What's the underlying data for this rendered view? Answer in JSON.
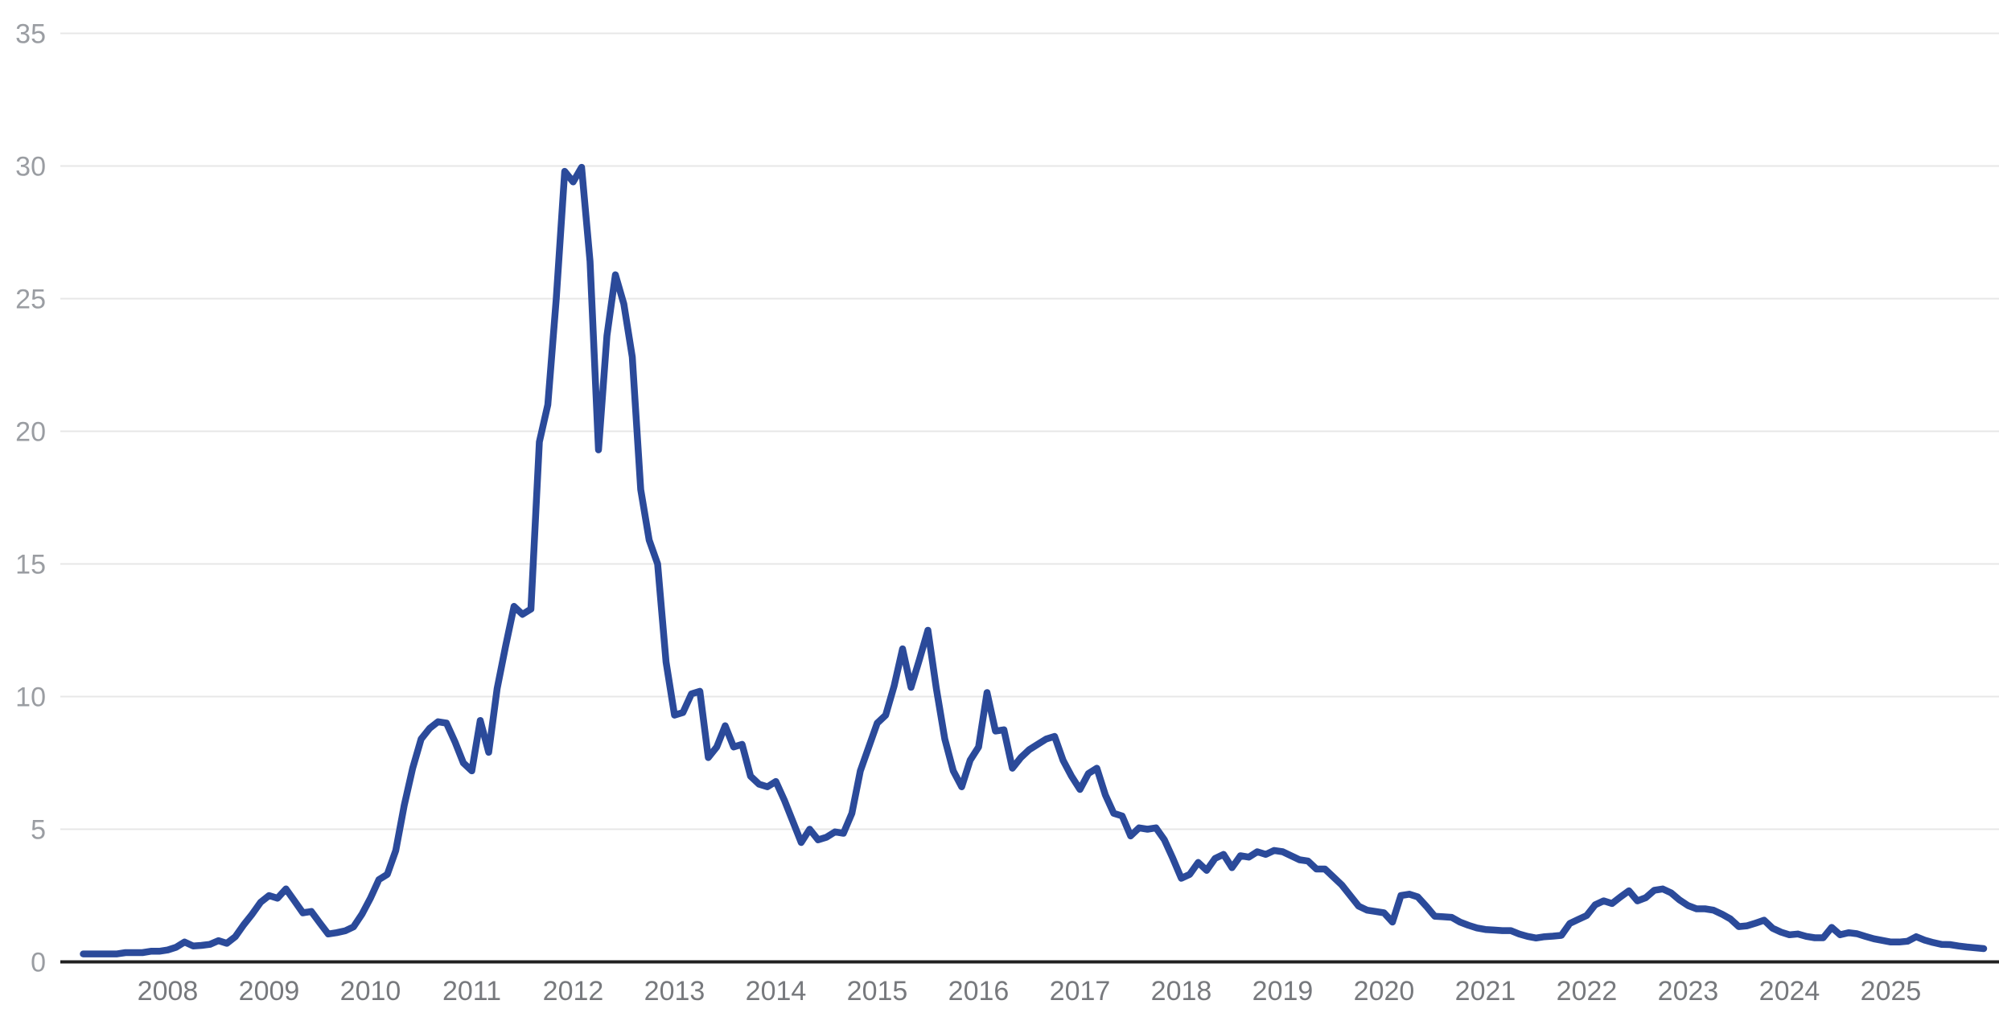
{
  "chart_data": {
    "type": "line",
    "title": "",
    "subtitle": "",
    "xlabel": "",
    "ylabel": "",
    "legend": "none",
    "grid": "horizontal",
    "background_color": "#ffffff",
    "line_color": "#2b4a9a",
    "gridline_color": "#e7e7e7",
    "baseline_color": "#212121",
    "y_label_color": "#9a9da2",
    "x_label_color": "#77797d",
    "ylim": [
      0,
      35
    ],
    "y_ticks": [
      0,
      5,
      10,
      15,
      20,
      25,
      30,
      35
    ],
    "x_tick_labels": [
      "2008",
      "2009",
      "2010",
      "2011",
      "2012",
      "2013",
      "2014",
      "2015",
      "2016",
      "2017",
      "2018",
      "2019",
      "2020",
      "2021",
      "2022",
      "2023",
      "2024",
      "2025"
    ],
    "frequency": "monthly",
    "start_month": "2007-03",
    "end_month": "2025-12",
    "values": [
      0.3,
      0.3,
      0.3,
      0.3,
      0.3,
      0.35,
      0.35,
      0.35,
      0.4,
      0.4,
      0.45,
      0.55,
      0.75,
      0.6,
      0.62,
      0.66,
      0.8,
      0.7,
      0.95,
      1.4,
      1.8,
      2.25,
      2.5,
      2.4,
      2.75,
      2.3,
      1.85,
      1.9,
      1.47,
      1.05,
      1.1,
      1.17,
      1.32,
      1.8,
      2.4,
      3.1,
      3.3,
      4.2,
      5.9,
      7.3,
      8.4,
      8.8,
      9.05,
      9.0,
      8.3,
      7.5,
      7.2,
      9.1,
      7.9,
      10.3,
      11.9,
      13.4,
      13.1,
      13.3,
      19.6,
      21.0,
      25.0,
      29.8,
      29.4,
      29.95,
      26.4,
      19.3,
      23.6,
      25.9,
      24.8,
      22.8,
      17.8,
      15.9,
      15.0,
      11.3,
      9.3,
      9.4,
      10.1,
      10.2,
      7.7,
      8.1,
      8.9,
      8.1,
      8.2,
      7.0,
      6.7,
      6.6,
      6.8,
      6.1,
      5.3,
      4.5,
      5.0,
      4.6,
      4.7,
      4.9,
      4.85,
      5.6,
      7.2,
      8.1,
      9.0,
      9.3,
      10.4,
      11.8,
      10.35,
      11.4,
      12.5,
      10.3,
      8.4,
      7.2,
      6.6,
      7.6,
      8.1,
      10.15,
      8.7,
      8.75,
      7.3,
      7.7,
      8.0,
      8.2,
      8.4,
      8.5,
      7.6,
      7.0,
      6.5,
      7.1,
      7.3,
      6.3,
      5.6,
      5.5,
      4.75,
      5.05,
      5.0,
      5.05,
      4.6,
      3.9,
      3.15,
      3.3,
      3.75,
      3.45,
      3.9,
      4.05,
      3.55,
      4.0,
      3.95,
      4.15,
      4.05,
      4.2,
      4.15,
      4.0,
      3.85,
      3.8,
      3.5,
      3.5,
      3.2,
      2.9,
      2.5,
      2.1,
      1.95,
      1.9,
      1.85,
      1.5,
      2.5,
      2.55,
      2.45,
      2.1,
      1.72,
      1.7,
      1.68,
      1.5,
      1.38,
      1.28,
      1.22,
      1.2,
      1.18,
      1.18,
      1.05,
      0.96,
      0.9,
      0.95,
      0.97,
      1.0,
      1.45,
      1.6,
      1.75,
      2.15,
      2.3,
      2.2,
      2.45,
      2.68,
      2.3,
      2.42,
      2.7,
      2.75,
      2.6,
      2.33,
      2.12,
      2.0,
      2.0,
      1.95,
      1.8,
      1.62,
      1.33,
      1.36,
      1.46,
      1.57,
      1.27,
      1.12,
      1.02,
      1.05,
      0.96,
      0.91,
      0.91,
      1.3,
      1.02,
      1.1,
      1.06,
      0.96,
      0.87,
      0.81,
      0.75,
      0.75,
      0.78,
      0.95,
      0.82,
      0.73,
      0.66,
      0.65,
      0.6,
      0.56,
      0.53,
      0.5
    ]
  }
}
